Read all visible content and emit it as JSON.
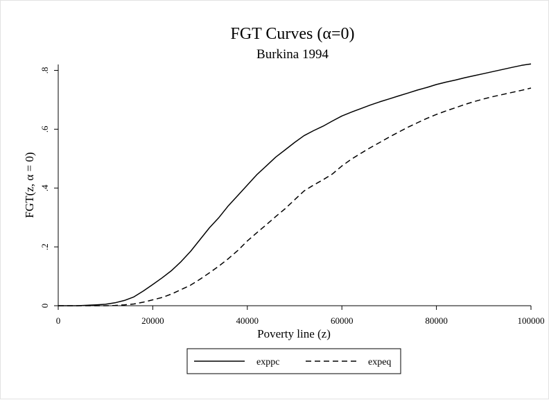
{
  "chart_data": {
    "type": "line",
    "title": "FGT Curves (α=0)",
    "subtitle": "Burkina 1994",
    "xlabel": "Poverty line (z)",
    "ylabel": "FGT(z, α = 0)",
    "xlim": [
      0,
      100000
    ],
    "ylim": [
      0,
      0.82
    ],
    "x_ticks": [
      0,
      20000,
      40000,
      60000,
      80000,
      100000
    ],
    "x_tick_labels": [
      "0",
      "20000",
      "40000",
      "60000",
      "80000",
      "100000"
    ],
    "y_ticks": [
      0,
      0.2,
      0.4,
      0.6,
      0.8
    ],
    "y_tick_labels": [
      "0",
      ".2",
      ".4",
      ".6",
      ".8"
    ],
    "grid": false,
    "legend": {
      "placement": "bottom",
      "entries": [
        "exppc",
        "expeq"
      ]
    },
    "x": [
      0,
      4000,
      8000,
      10000,
      12000,
      14000,
      16000,
      18000,
      20000,
      22000,
      24000,
      26000,
      28000,
      30000,
      32000,
      34000,
      36000,
      38000,
      40000,
      42000,
      44000,
      46000,
      48000,
      50000,
      52000,
      54000,
      56000,
      58000,
      60000,
      62000,
      64000,
      66000,
      68000,
      70000,
      72000,
      74000,
      76000,
      78000,
      80000,
      82000,
      84000,
      86000,
      88000,
      90000,
      92000,
      94000,
      96000,
      98000,
      100000
    ],
    "series": [
      {
        "name": "exppc",
        "style": "solid",
        "values": [
          0,
          0.0,
          0.003,
          0.005,
          0.01,
          0.018,
          0.03,
          0.05,
          0.072,
          0.095,
          0.12,
          0.15,
          0.185,
          0.225,
          0.265,
          0.3,
          0.34,
          0.375,
          0.41,
          0.445,
          0.475,
          0.505,
          0.53,
          0.555,
          0.578,
          0.595,
          0.61,
          0.628,
          0.645,
          0.658,
          0.67,
          0.682,
          0.693,
          0.703,
          0.713,
          0.723,
          0.733,
          0.742,
          0.752,
          0.76,
          0.767,
          0.775,
          0.782,
          0.789,
          0.796,
          0.803,
          0.81,
          0.817,
          0.822
        ]
      },
      {
        "name": "expeq",
        "style": "dashed",
        "values": [
          0,
          0.0,
          0.0,
          0.0,
          0.001,
          0.003,
          0.006,
          0.012,
          0.02,
          0.028,
          0.04,
          0.055,
          0.07,
          0.09,
          0.112,
          0.135,
          0.16,
          0.188,
          0.22,
          0.248,
          0.275,
          0.303,
          0.33,
          0.36,
          0.39,
          0.41,
          0.428,
          0.448,
          0.475,
          0.498,
          0.518,
          0.537,
          0.555,
          0.573,
          0.59,
          0.607,
          0.622,
          0.637,
          0.65,
          0.662,
          0.673,
          0.684,
          0.694,
          0.703,
          0.711,
          0.718,
          0.725,
          0.732,
          0.74
        ]
      }
    ]
  }
}
